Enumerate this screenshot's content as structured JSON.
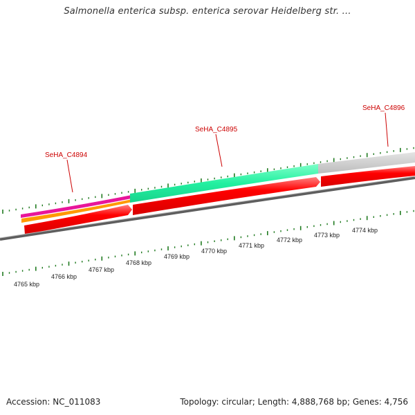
{
  "title": "Salmonella enterica subsp. enterica serovar Heidelberg str. ...",
  "footer": {
    "accession": "Accession: NC_011083",
    "summary": "Topology: circular; Length: 4,888,768 bp; Genes: 4,756"
  },
  "colors": {
    "backbone": "#7a7a7a",
    "ticks": "#1f7a1f",
    "gene_label": "#cc0000",
    "cds_red": "#ff0000",
    "track_pink": "#e8169a",
    "track_orange": "#ff9900",
    "track_green": "#22f0a0",
    "track_grey": "#c8c8c8"
  },
  "scale_labels": [
    "4765 kbp",
    "4766 kbp",
    "4767 kbp",
    "4768 kbp",
    "4769 kbp",
    "4770 kbp",
    "4771 kbp",
    "4772 kbp",
    "4773 kbp",
    "4774 kbp"
  ],
  "gene_labels": [
    "SeHA_C4894",
    "SeHA_C4895",
    "SeHA_C4896"
  ]
}
